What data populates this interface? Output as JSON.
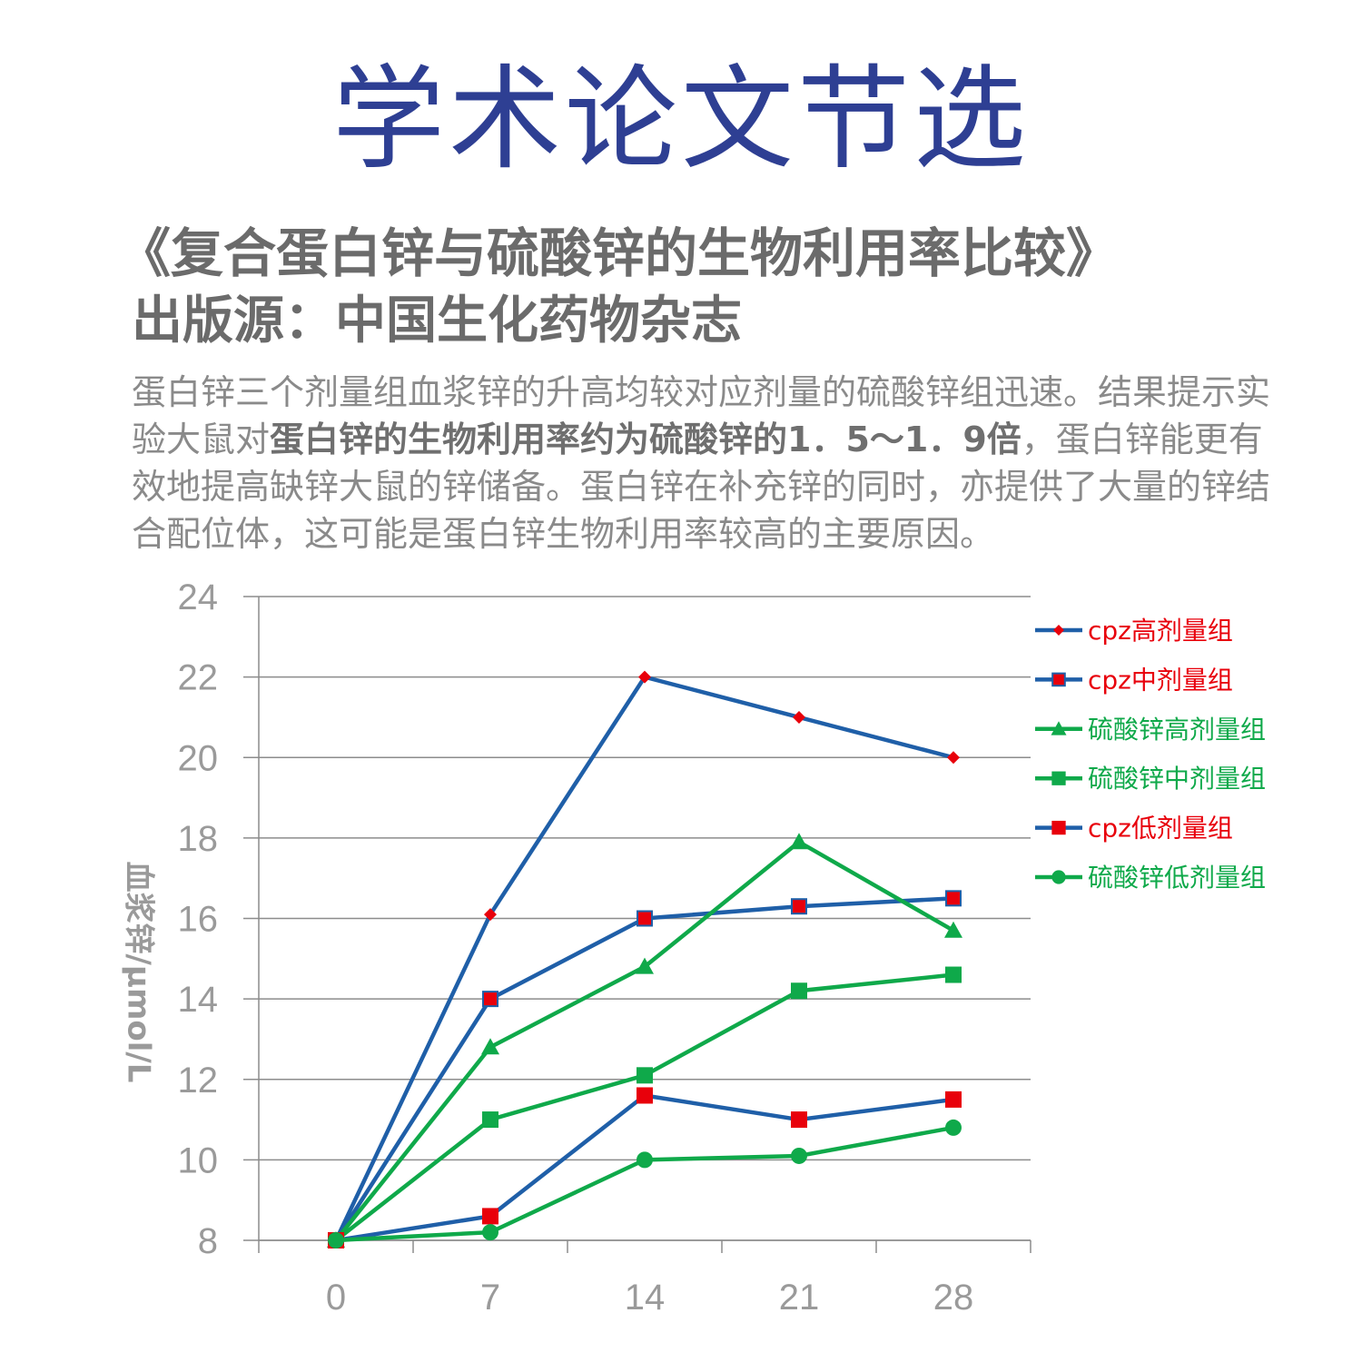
{
  "header": {
    "banner": "学术论文节选",
    "paper_title": "《复合蛋白锌与硫酸锌的生物利用率比较》",
    "source": "出版源：中国生化药物杂志"
  },
  "abstract": {
    "part1": "蛋白锌三个剂量组血浆锌的升高均较对应剂量的硫酸锌组迅速。结果提示实验大鼠对",
    "bold": "蛋白锌的生物利用率约为硫酸锌的1．5～1．9倍",
    "part2": "，蛋白锌能更有效地提高缺锌大鼠的锌储备。蛋白锌在补充锌的同时，亦提供了大量的锌结合配位体，这可能是蛋白锌生物利用率较高的主要原因。"
  },
  "chart_data": {
    "type": "line",
    "title": "",
    "xlabel": "",
    "ylabel": "血浆锌/μmol/L",
    "x": [
      0,
      7,
      14,
      21,
      28
    ],
    "ylim": [
      8,
      24
    ],
    "yticks": [
      8,
      10,
      12,
      14,
      16,
      18,
      20,
      22,
      24
    ],
    "grid": true,
    "legend_position": "right",
    "series": [
      {
        "name": "cpz高剂量组",
        "values": [
          8,
          16.1,
          22,
          21,
          20
        ],
        "line_color": "#1f5fa8",
        "marker": "diamond",
        "marker_color": "#e8000b",
        "label_color": "#e8000b"
      },
      {
        "name": "cpz中剂量组",
        "values": [
          8,
          14,
          16,
          16.3,
          16.5
        ],
        "line_color": "#1f5fa8",
        "marker": "square-outlined",
        "marker_color": "#e8000b",
        "label_color": "#e8000b"
      },
      {
        "name": "硫酸锌高剂量组",
        "values": [
          8,
          12.8,
          14.8,
          17.9,
          15.7
        ],
        "line_color": "#0fa94a",
        "marker": "triangle",
        "marker_color": "#0fa94a",
        "label_color": "#0fa94a"
      },
      {
        "name": "硫酸锌中剂量组",
        "values": [
          8,
          11,
          12.1,
          14.2,
          14.6
        ],
        "line_color": "#0fa94a",
        "marker": "square",
        "marker_color": "#0fa94a",
        "label_color": "#0fa94a"
      },
      {
        "name": "cpz低剂量组",
        "values": [
          8,
          8.6,
          11.6,
          11,
          11.5
        ],
        "line_color": "#1f5fa8",
        "marker": "square",
        "marker_color": "#e8000b",
        "label_color": "#e8000b"
      },
      {
        "name": "硫酸锌低剂量组",
        "values": [
          8,
          8.2,
          10,
          10.1,
          10.8
        ],
        "line_color": "#0fa94a",
        "marker": "circle",
        "marker_color": "#0fa94a",
        "label_color": "#0fa94a"
      }
    ]
  }
}
